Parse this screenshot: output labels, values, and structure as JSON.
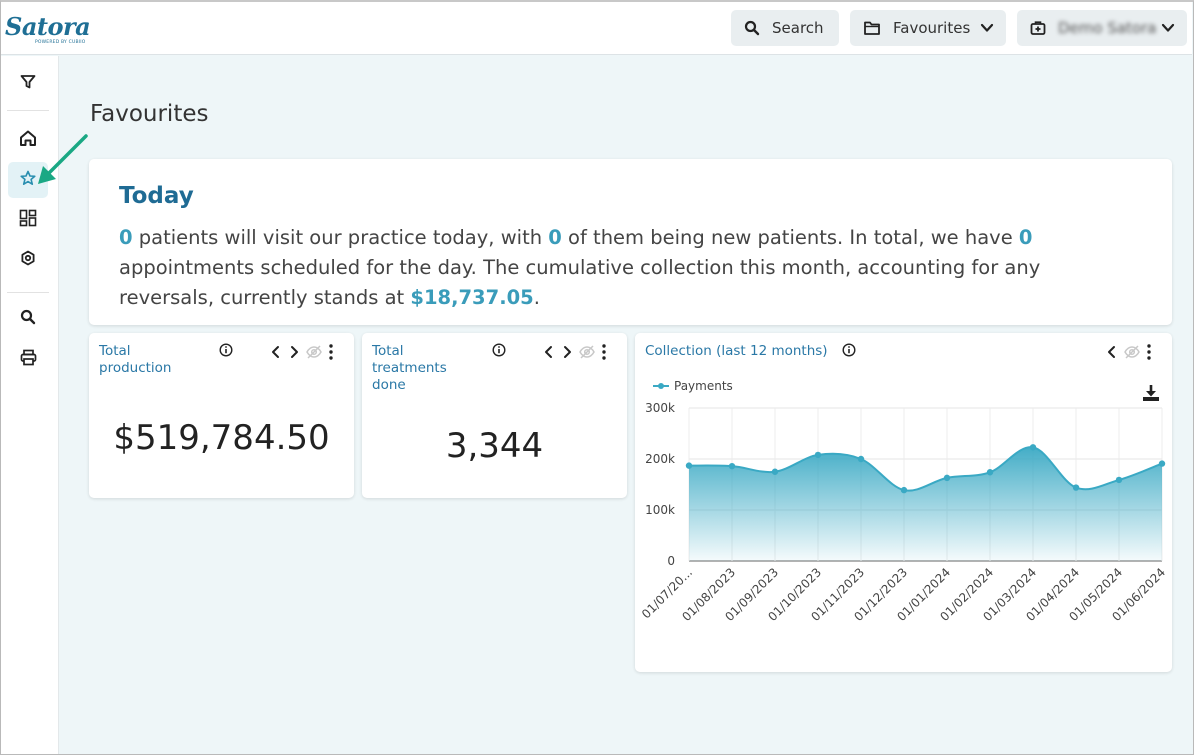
{
  "app": {
    "logo_text": "Satora",
    "logo_sub": "POWERED BY CUBIIO"
  },
  "topbar": {
    "search_label": "Search",
    "favourites_label": "Favourites",
    "user_label": "Demo Satora"
  },
  "page": {
    "title": "Favourites"
  },
  "today": {
    "title": "Today",
    "patients": "0",
    "text1": " patients will visit our practice today, with ",
    "new_patients": "0",
    "text2": " of them being new patients. In total, we have ",
    "appointments": "0",
    "text3": " appointments scheduled for the day. The cumulative collection this month, accounting for any reversals, currently stands at ",
    "collection": "$18,737.05",
    "text4": "."
  },
  "kpis": [
    {
      "title": "Total production",
      "value": "$519,784.50"
    },
    {
      "title": "Total treatments done",
      "value": "3,344"
    }
  ],
  "chart_card": {
    "title": "Collection (last 12 months)"
  },
  "colors": {
    "brand": "#1f6f95",
    "accent": "#3a9cba",
    "series": "#3aa9c4",
    "arrow": "#1aa884"
  },
  "chart_data": {
    "type": "area",
    "title": "Collection (last 12 months)",
    "x": [
      "01/07/20...",
      "01/08/2023",
      "01/09/2023",
      "01/10/2023",
      "01/11/2023",
      "01/12/2023",
      "01/01/2024",
      "01/02/2024",
      "01/03/2024",
      "01/04/2024",
      "01/05/2024",
      "01/06/2024"
    ],
    "series": [
      {
        "name": "Payments",
        "values": [
          187000,
          186000,
          175000,
          208000,
          200000,
          139000,
          163000,
          174000,
          223000,
          144000,
          159000,
          191000
        ]
      }
    ],
    "ylim": [
      0,
      300000
    ],
    "yticks": [
      "0",
      "100k",
      "200k",
      "300k"
    ],
    "legend": "top-left",
    "grid": true
  }
}
